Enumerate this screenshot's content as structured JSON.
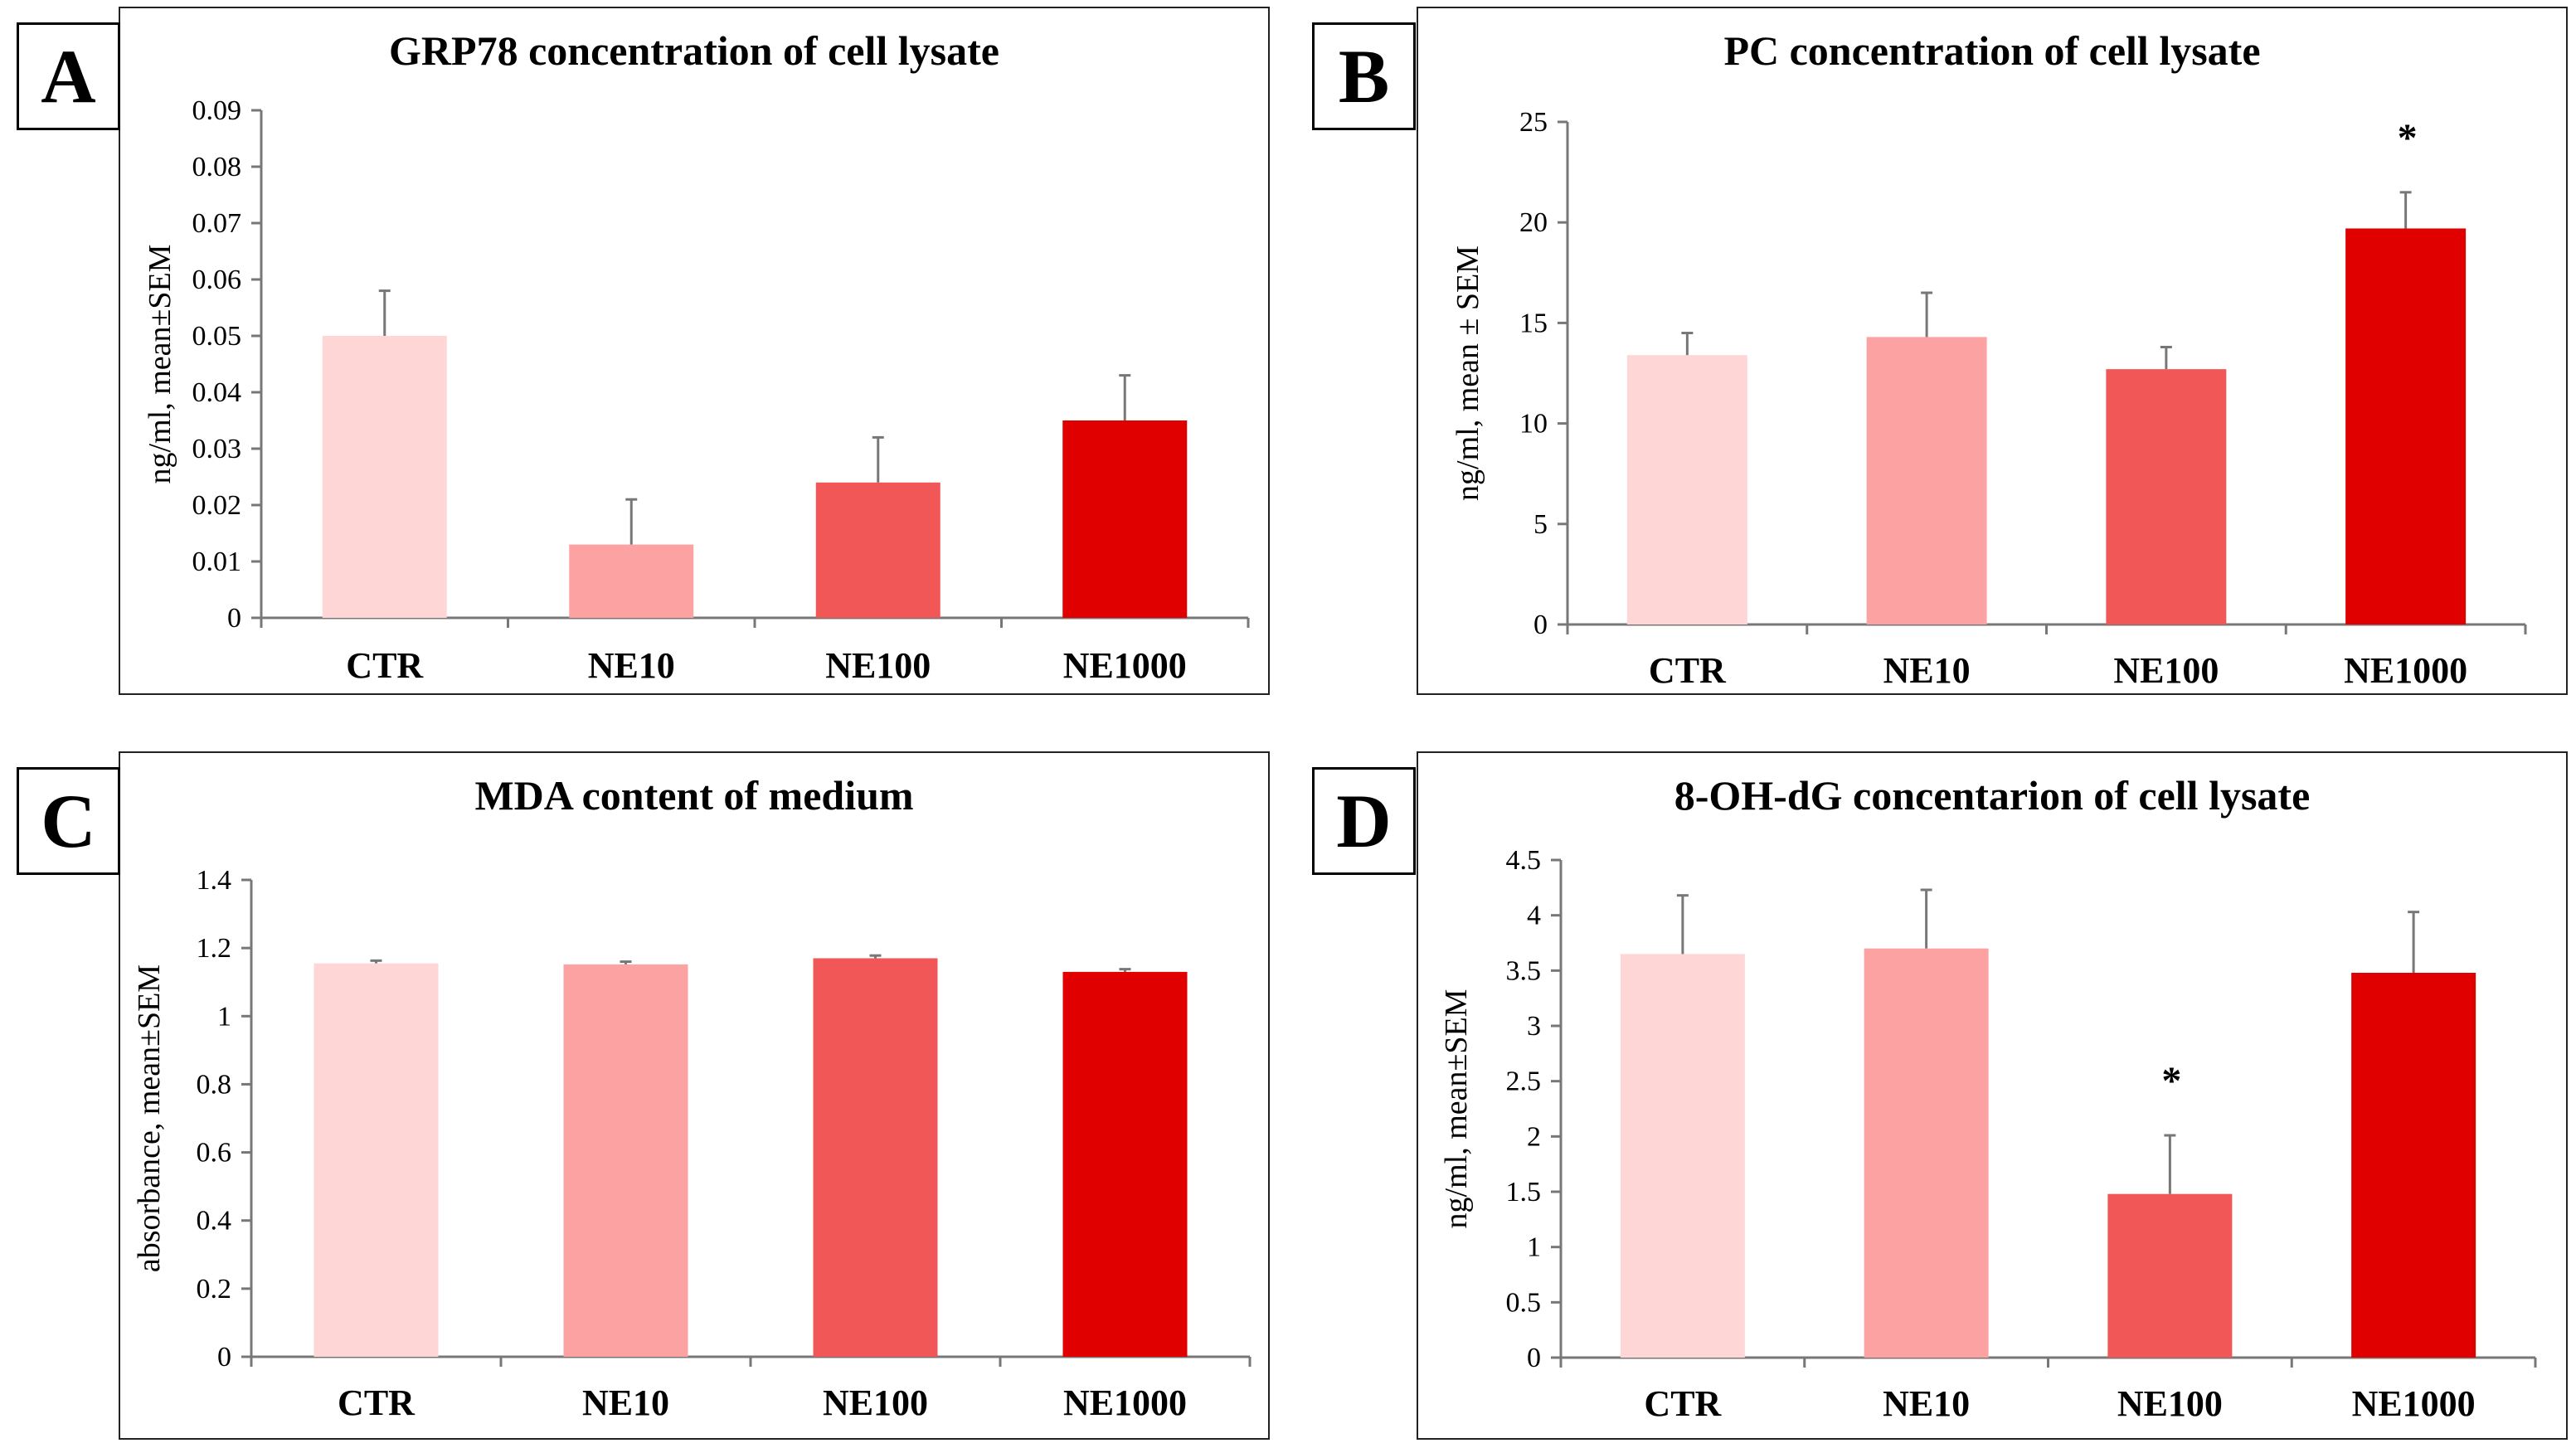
{
  "chart_data": [
    {
      "id": "A",
      "type": "bar",
      "panel_label": "A",
      "title": "GRP78 concentration of cell lysate",
      "ylabel": "ng/ml, mean±SEM",
      "xlabel": "",
      "categories": [
        "CTR",
        "NE10",
        "NE100",
        "NE1000"
      ],
      "values": [
        0.05,
        0.013,
        0.024,
        0.035
      ],
      "errors": [
        0.008,
        0.008,
        0.008,
        0.008
      ],
      "significance": [
        "",
        "",
        "",
        ""
      ],
      "ylim": [
        0,
        0.09
      ],
      "yticks": [
        0,
        0.01,
        0.02,
        0.03,
        0.04,
        0.05,
        0.06,
        0.07,
        0.08,
        0.09
      ],
      "ytick_labels": [
        "0",
        "0.01",
        "0.02",
        "0.03",
        "0.04",
        "0.05",
        "0.06",
        "0.07",
        "0.08",
        "0.09"
      ],
      "colors": [
        "#FFD6D6",
        "#FDA2A2",
        "#F25757",
        "#E00000"
      ],
      "grid": false
    },
    {
      "id": "B",
      "type": "bar",
      "panel_label": "B",
      "title": "PC concentration of cell lysate",
      "ylabel": "ng/ml, mean ± SEM",
      "xlabel": "",
      "categories": [
        "CTR",
        "NE10",
        "NE100",
        "NE1000"
      ],
      "values": [
        13.4,
        14.3,
        12.7,
        19.7
      ],
      "errors": [
        1.1,
        2.2,
        1.1,
        1.8
      ],
      "significance": [
        "",
        "",
        "",
        "*"
      ],
      "ylim": [
        0,
        25
      ],
      "yticks": [
        0,
        5,
        10,
        15,
        20,
        25
      ],
      "ytick_labels": [
        "0",
        "5",
        "10",
        "15",
        "20",
        "25"
      ],
      "colors": [
        "#FFD6D6",
        "#FDA2A2",
        "#F25757",
        "#E00000"
      ],
      "grid": false
    },
    {
      "id": "C",
      "type": "bar",
      "panel_label": "C",
      "title": "MDA content of medium",
      "ylabel": "absorbance, mean±SEM",
      "xlabel": "",
      "categories": [
        "CTR",
        "NE10",
        "NE100",
        "NE1000"
      ],
      "values": [
        1.155,
        1.152,
        1.17,
        1.13
      ],
      "errors": [
        0.008,
        0.008,
        0.008,
        0.008
      ],
      "significance": [
        "",
        "",
        "",
        ""
      ],
      "ylim": [
        0,
        1.4
      ],
      "yticks": [
        0,
        0.2,
        0.4,
        0.6,
        0.8,
        1.0,
        1.2,
        1.4
      ],
      "ytick_labels": [
        "0",
        "0.2",
        "0.4",
        "0.6",
        "0.8",
        "1",
        "1.2",
        "1.4"
      ],
      "colors": [
        "#FFD6D6",
        "#FDA2A2",
        "#F25757",
        "#E00000"
      ],
      "grid": false
    },
    {
      "id": "D",
      "type": "bar",
      "panel_label": "D",
      "title": "8-OH-dG concentarion of cell lysate",
      "ylabel": "ng/ml, mean±SEM",
      "xlabel": "",
      "categories": [
        "CTR",
        "NE10",
        "NE100",
        "NE1000"
      ],
      "values": [
        3.65,
        3.7,
        1.48,
        3.48
      ],
      "errors": [
        0.53,
        0.53,
        0.53,
        0.55
      ],
      "significance": [
        "",
        "",
        "*",
        ""
      ],
      "ylim": [
        0,
        4.5
      ],
      "yticks": [
        0,
        0.5,
        1,
        1.5,
        2,
        2.5,
        3,
        3.5,
        4,
        4.5
      ],
      "ytick_labels": [
        "0",
        "0.5",
        "1",
        "1.5",
        "2",
        "2.5",
        "3",
        "3.5",
        "4",
        "4.5"
      ],
      "colors": [
        "#FFD6D6",
        "#FDA2A2",
        "#F25757",
        "#E00000"
      ],
      "grid": false
    }
  ]
}
